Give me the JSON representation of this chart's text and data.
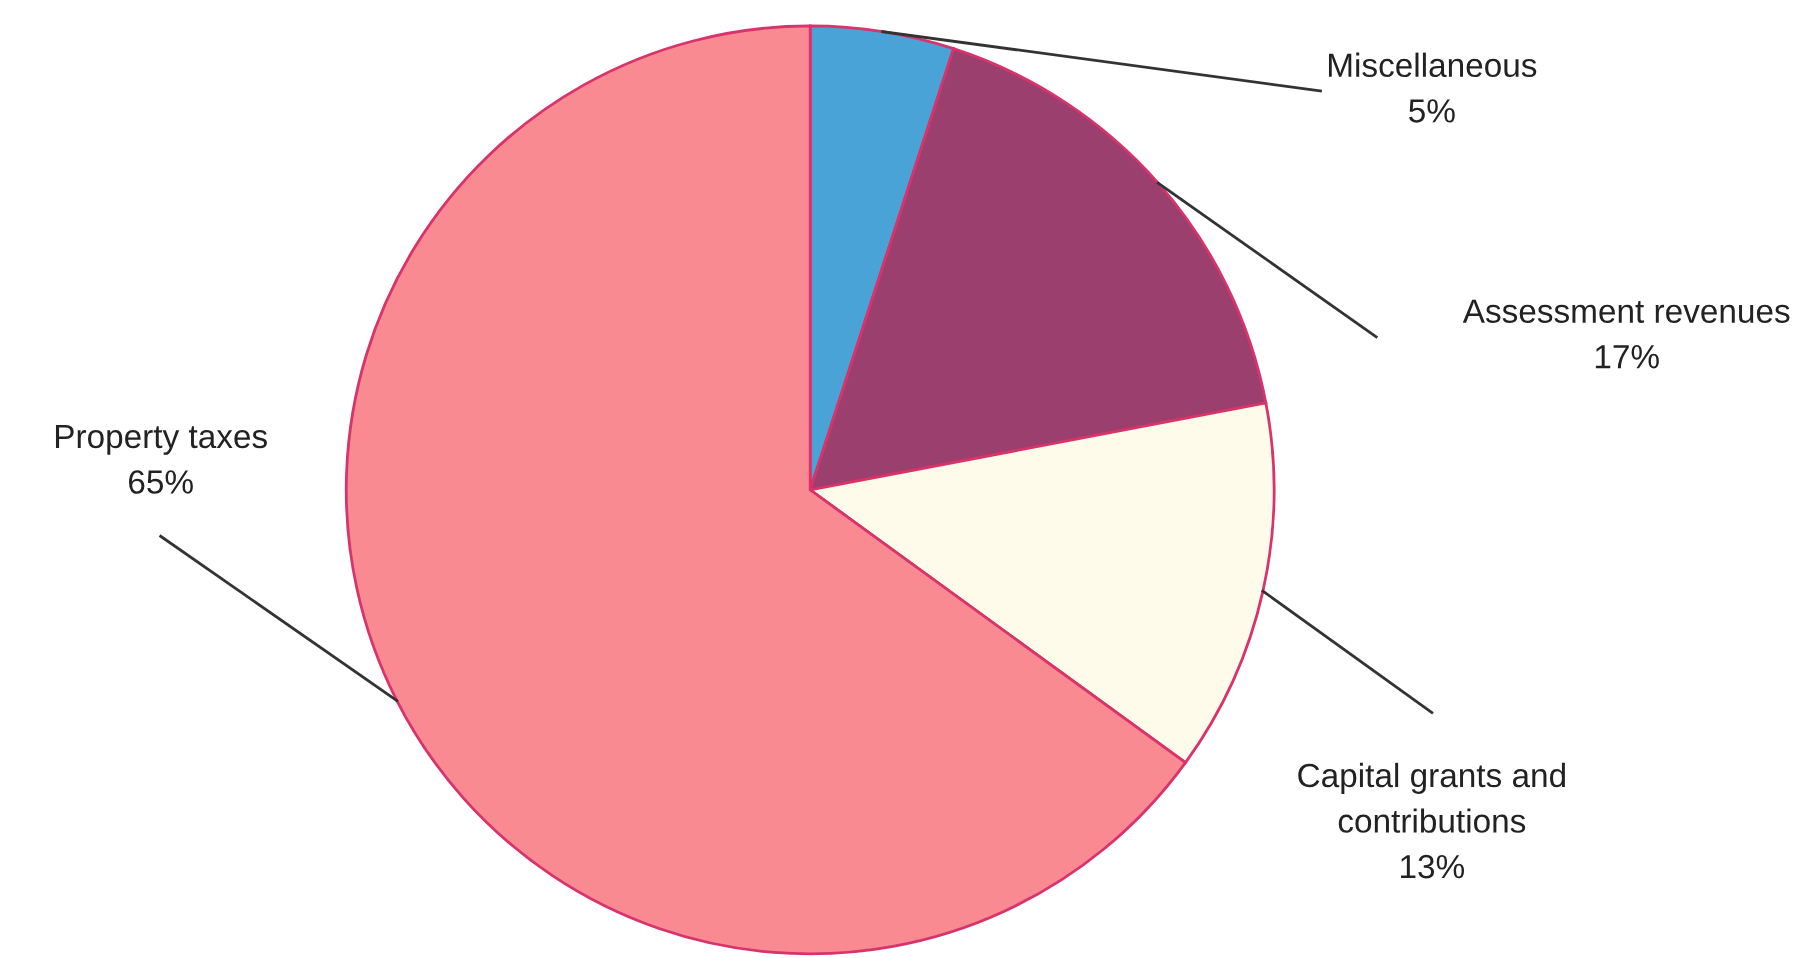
{
  "chart_data": {
    "type": "pie",
    "categories": [
      "Miscellaneous",
      "Assessment revenues",
      "Capital grants and contributions",
      "Property taxes"
    ],
    "values": [
      5,
      17,
      13,
      65
    ],
    "value_labels": [
      "5%",
      "17%",
      "13%",
      "65%"
    ],
    "colors": [
      "#4aa3d6",
      "#9a3f6e",
      "#fffbea",
      "#f98a92"
    ],
    "legend": false
  }
}
